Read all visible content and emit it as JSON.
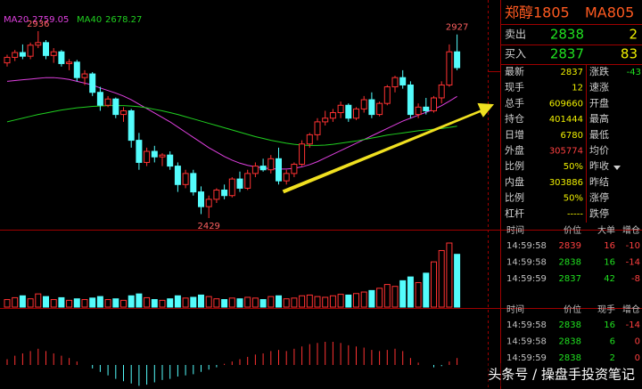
{
  "chart_panel": {
    "indicators": [
      {
        "name": "MA20",
        "value": 2759.05,
        "color": "#e040e0"
      },
      {
        "name": "MA40",
        "value": 2678.27,
        "color": "#20d020"
      }
    ],
    "high_label": 2936,
    "recent_high_label": 2927,
    "low_label": 2429,
    "up_color": "#ff3232",
    "down_color": "#54fcfc",
    "candles": [
      [
        2850,
        2872,
        2840,
        2865
      ],
      [
        2865,
        2885,
        2855,
        2878
      ],
      [
        2878,
        2900,
        2860,
        2868
      ],
      [
        2868,
        2905,
        2860,
        2898
      ],
      [
        2898,
        2936,
        2890,
        2905
      ],
      [
        2905,
        2912,
        2860,
        2870
      ],
      [
        2870,
        2890,
        2850,
        2880
      ],
      [
        2880,
        2885,
        2840,
        2848
      ],
      [
        2848,
        2860,
        2830,
        2852
      ],
      [
        2852,
        2858,
        2800,
        2810
      ],
      [
        2810,
        2830,
        2790,
        2820
      ],
      [
        2820,
        2825,
        2760,
        2770
      ],
      [
        2770,
        2785,
        2720,
        2735
      ],
      [
        2735,
        2760,
        2730,
        2752
      ],
      [
        2752,
        2756,
        2700,
        2710
      ],
      [
        2710,
        2730,
        2690,
        2720
      ],
      [
        2720,
        2725,
        2620,
        2640
      ],
      [
        2640,
        2660,
        2560,
        2580
      ],
      [
        2580,
        2620,
        2570,
        2610
      ],
      [
        2610,
        2625,
        2580,
        2595
      ],
      [
        2595,
        2605,
        2570,
        2600
      ],
      [
        2600,
        2610,
        2560,
        2570
      ],
      [
        2570,
        2580,
        2500,
        2520
      ],
      [
        2520,
        2560,
        2510,
        2550
      ],
      [
        2550,
        2560,
        2490,
        2500
      ],
      [
        2500,
        2515,
        2440,
        2460
      ],
      [
        2460,
        2490,
        2429,
        2480
      ],
      [
        2480,
        2510,
        2470,
        2505
      ],
      [
        2505,
        2520,
        2480,
        2490
      ],
      [
        2490,
        2540,
        2485,
        2535
      ],
      [
        2535,
        2555,
        2500,
        2510
      ],
      [
        2510,
        2560,
        2505,
        2550
      ],
      [
        2550,
        2580,
        2540,
        2570
      ],
      [
        2570,
        2590,
        2555,
        2560
      ],
      [
        2560,
        2600,
        2550,
        2590
      ],
      [
        2590,
        2620,
        2520,
        2530
      ],
      [
        2530,
        2560,
        2520,
        2550
      ],
      [
        2550,
        2580,
        2540,
        2575
      ],
      [
        2575,
        2640,
        2570,
        2630
      ],
      [
        2630,
        2660,
        2620,
        2655
      ],
      [
        2655,
        2700,
        2640,
        2690
      ],
      [
        2690,
        2720,
        2680,
        2700
      ],
      [
        2700,
        2725,
        2690,
        2715
      ],
      [
        2715,
        2745,
        2700,
        2735
      ],
      [
        2735,
        2740,
        2690,
        2700
      ],
      [
        2700,
        2730,
        2695,
        2725
      ],
      [
        2725,
        2760,
        2715,
        2750
      ],
      [
        2750,
        2770,
        2700,
        2710
      ],
      [
        2710,
        2745,
        2705,
        2740
      ],
      [
        2740,
        2790,
        2735,
        2785
      ],
      [
        2785,
        2815,
        2770,
        2810
      ],
      [
        2810,
        2830,
        2780,
        2790
      ],
      [
        2790,
        2800,
        2700,
        2710
      ],
      [
        2710,
        2740,
        2700,
        2730
      ],
      [
        2730,
        2755,
        2710,
        2720
      ],
      [
        2720,
        2760,
        2715,
        2755
      ],
      [
        2755,
        2800,
        2740,
        2790
      ],
      [
        2790,
        2900,
        2785,
        2880
      ],
      [
        2880,
        2927,
        2830,
        2837
      ]
    ],
    "ma20": [
      2800,
      2802,
      2804,
      2806,
      2808,
      2810,
      2810,
      2808,
      2805,
      2800,
      2795,
      2790,
      2782,
      2775,
      2768,
      2760,
      2750,
      2738,
      2726,
      2714,
      2702,
      2690,
      2676,
      2662,
      2648,
      2634,
      2620,
      2608,
      2596,
      2586,
      2578,
      2572,
      2568,
      2565,
      2563,
      2562,
      2562,
      2564,
      2568,
      2574,
      2582,
      2592,
      2602,
      2612,
      2622,
      2632,
      2642,
      2652,
      2662,
      2672,
      2682,
      2692,
      2700,
      2708,
      2716,
      2724,
      2734,
      2746,
      2759.05
    ],
    "ma40": [
      2690,
      2695,
      2700,
      2705,
      2710,
      2714,
      2718,
      2722,
      2725,
      2728,
      2730,
      2732,
      2733,
      2734,
      2734,
      2734,
      2733,
      2731,
      2728,
      2724,
      2720,
      2715,
      2710,
      2704,
      2698,
      2692,
      2686,
      2680,
      2674,
      2668,
      2662,
      2656,
      2650,
      2645,
      2640,
      2636,
      2632,
      2629,
      2627,
      2626,
      2626,
      2627,
      2629,
      2632,
      2635,
      2638,
      2642,
      2646,
      2650,
      2654,
      2657,
      2660,
      2663,
      2666,
      2668,
      2670,
      2672,
      2675,
      2678.27
    ],
    "volume": [
      20,
      25,
      30,
      22,
      35,
      28,
      20,
      25,
      18,
      22,
      20,
      24,
      28,
      20,
      22,
      18,
      30,
      35,
      25,
      20,
      18,
      22,
      30,
      24,
      26,
      32,
      28,
      22,
      20,
      24,
      22,
      26,
      24,
      20,
      28,
      30,
      22,
      24,
      30,
      32,
      28,
      26,
      30,
      34,
      32,
      36,
      40,
      44,
      50,
      60,
      55,
      70,
      80,
      65,
      90,
      120,
      150,
      170,
      140
    ],
    "macd": [
      5,
      8,
      10,
      12,
      14,
      12,
      10,
      8,
      6,
      3,
      0,
      -3,
      -6,
      -9,
      -12,
      -14,
      -16,
      -18,
      -17,
      -15,
      -13,
      -12,
      -10,
      -9,
      -8,
      -6,
      -4,
      -2,
      1,
      3,
      5,
      7,
      9,
      10,
      12,
      13,
      12,
      14,
      16,
      18,
      19,
      20,
      20,
      19,
      17,
      16,
      15,
      13,
      12,
      13,
      14,
      12,
      6,
      2,
      0,
      -2,
      -1,
      3,
      6
    ]
  },
  "quote_panel": {
    "title": "郑醇1805",
    "contract": "MA805",
    "book": [
      [
        "卖出",
        "2838",
        "2"
      ],
      [
        "买入",
        "2837",
        "83"
      ]
    ],
    "stats": [
      {
        "label": "最新",
        "value": "2837"
      },
      {
        "label": "现手",
        "value": "12"
      },
      {
        "label": "总手",
        "value": "609660"
      },
      {
        "label": "持仓",
        "value": "401444"
      },
      {
        "label": "日增",
        "value": "6780"
      },
      {
        "label": "外盘",
        "value": "305774"
      },
      {
        "label": "比例",
        "value": "50%"
      },
      {
        "label": "内盘",
        "value": "303886"
      },
      {
        "label": "比例",
        "value": "50%"
      },
      {
        "label": "杠杆",
        "value": "-----"
      }
    ],
    "stats_right": [
      {
        "label": "涨跌",
        "value": "-43"
      },
      {
        "label": "速涨"
      },
      {
        "label": "开盘"
      },
      {
        "label": "最高"
      },
      {
        "label": "最低"
      },
      {
        "label": "均价"
      },
      {
        "label": "昨收"
      },
      {
        "label": "昨结"
      },
      {
        "label": "涨停"
      },
      {
        "label": "跌停"
      }
    ],
    "trades_big": {
      "header": [
        "时间",
        "价位",
        "大单",
        "增仓"
      ],
      "rows": [
        [
          "14:59:58",
          "2839",
          "16",
          "-10"
        ],
        [
          "14:59:58",
          "2838",
          "16",
          "-14"
        ],
        [
          "14:59:59",
          "2837",
          "42",
          "-8"
        ]
      ]
    },
    "trades": {
      "header": [
        "时间",
        "价位",
        "现手",
        "增仓"
      ],
      "rows": [
        [
          "14:59:58",
          "2838",
          "16",
          "-14"
        ],
        [
          "14:59:58",
          "2838",
          "6",
          "0"
        ],
        [
          "14:59:59",
          "2838",
          "2",
          "0"
        ]
      ]
    }
  },
  "watermark": "头条号 / 操盘手投资笔记"
}
